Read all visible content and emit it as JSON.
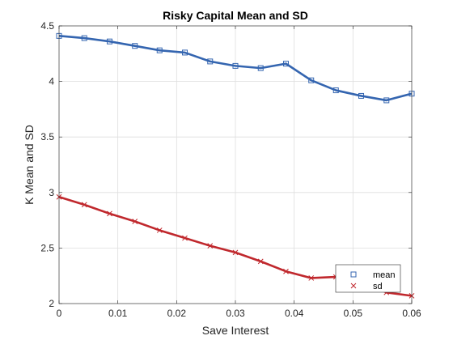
{
  "chart_data": {
    "type": "line",
    "title": "Risky Capital Mean and SD",
    "xlabel": "Save Interest",
    "ylabel": "K Mean and SD",
    "xlim": [
      0,
      0.06
    ],
    "ylim": [
      2,
      4.5
    ],
    "xticks": [
      0,
      0.01,
      0.02,
      0.03,
      0.04,
      0.05,
      0.06
    ],
    "xtick_labels": [
      "0",
      "0.01",
      "0.02",
      "0.03",
      "0.04",
      "0.05",
      "0.06"
    ],
    "yticks": [
      2,
      2.5,
      3,
      3.5,
      4,
      4.5
    ],
    "ytick_labels": [
      "2",
      "2.5",
      "3",
      "3.5",
      "4",
      "4.5"
    ],
    "grid": true,
    "legend_position": "bottom-right",
    "x": [
      0,
      0.0043,
      0.0086,
      0.0129,
      0.0171,
      0.0214,
      0.0257,
      0.03,
      0.0343,
      0.0386,
      0.0429,
      0.0471,
      0.0514,
      0.0557,
      0.06
    ],
    "series": [
      {
        "name": "mean",
        "color": "#3465B0",
        "marker": "square",
        "values": [
          4.41,
          4.39,
          4.36,
          4.32,
          4.28,
          4.26,
          4.18,
          4.14,
          4.12,
          4.16,
          4.01,
          3.92,
          3.87,
          3.83,
          3.89
        ]
      },
      {
        "name": "sd",
        "color": "#C0282D",
        "marker": "x",
        "values": [
          2.96,
          2.89,
          2.81,
          2.74,
          2.66,
          2.59,
          2.52,
          2.46,
          2.38,
          2.29,
          2.23,
          2.24,
          2.21,
          2.1,
          2.07
        ]
      }
    ]
  }
}
